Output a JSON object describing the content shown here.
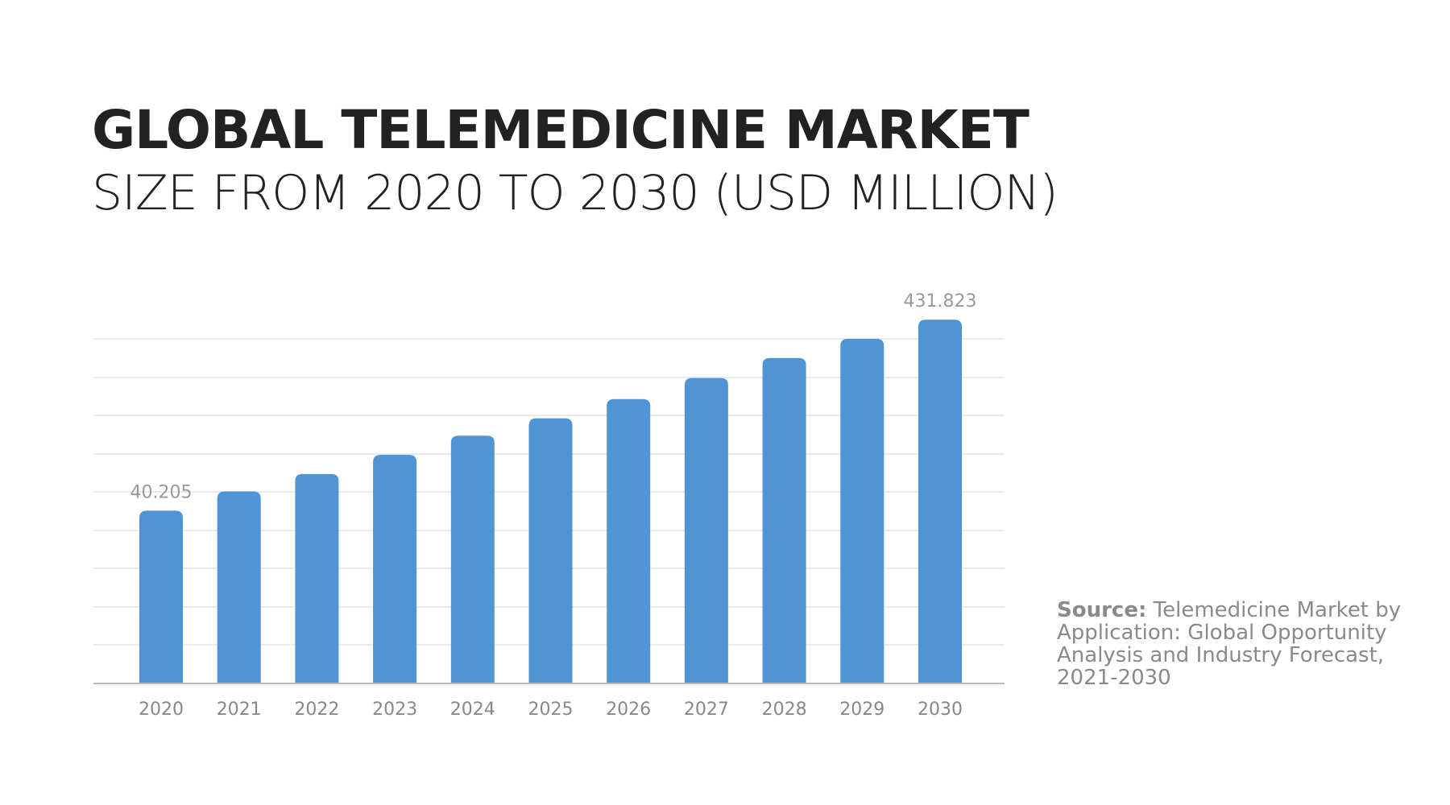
{
  "chart_data": {
    "type": "bar",
    "title": "GLOBAL TELEMEDICINE MARKET",
    "subtitle": "SIZE FROM 2020 TO 2030 (USD MILLION)",
    "categories": [
      "2020",
      "2021",
      "2022",
      "2023",
      "2024",
      "2025",
      "2026",
      "2027",
      "2028",
      "2029",
      "2030"
    ],
    "values": [
      40.205,
      79.6,
      115.2,
      154.6,
      193.9,
      229.5,
      268.9,
      312,
      353.2,
      392.5,
      431.823
    ],
    "value_labels": [
      "40.205",
      null,
      null,
      null,
      null,
      null,
      null,
      null,
      null,
      null,
      "431.823"
    ],
    "color": "#4f95d6",
    "ylim": [
      -314,
      460
    ],
    "grid": true,
    "source": {
      "label": "Source:",
      "lines": [
        "Telemedicine Market by",
        "Application: Global Opportunity",
        "Analysis and Industry Forecast,",
        "2021-2030"
      ]
    }
  }
}
